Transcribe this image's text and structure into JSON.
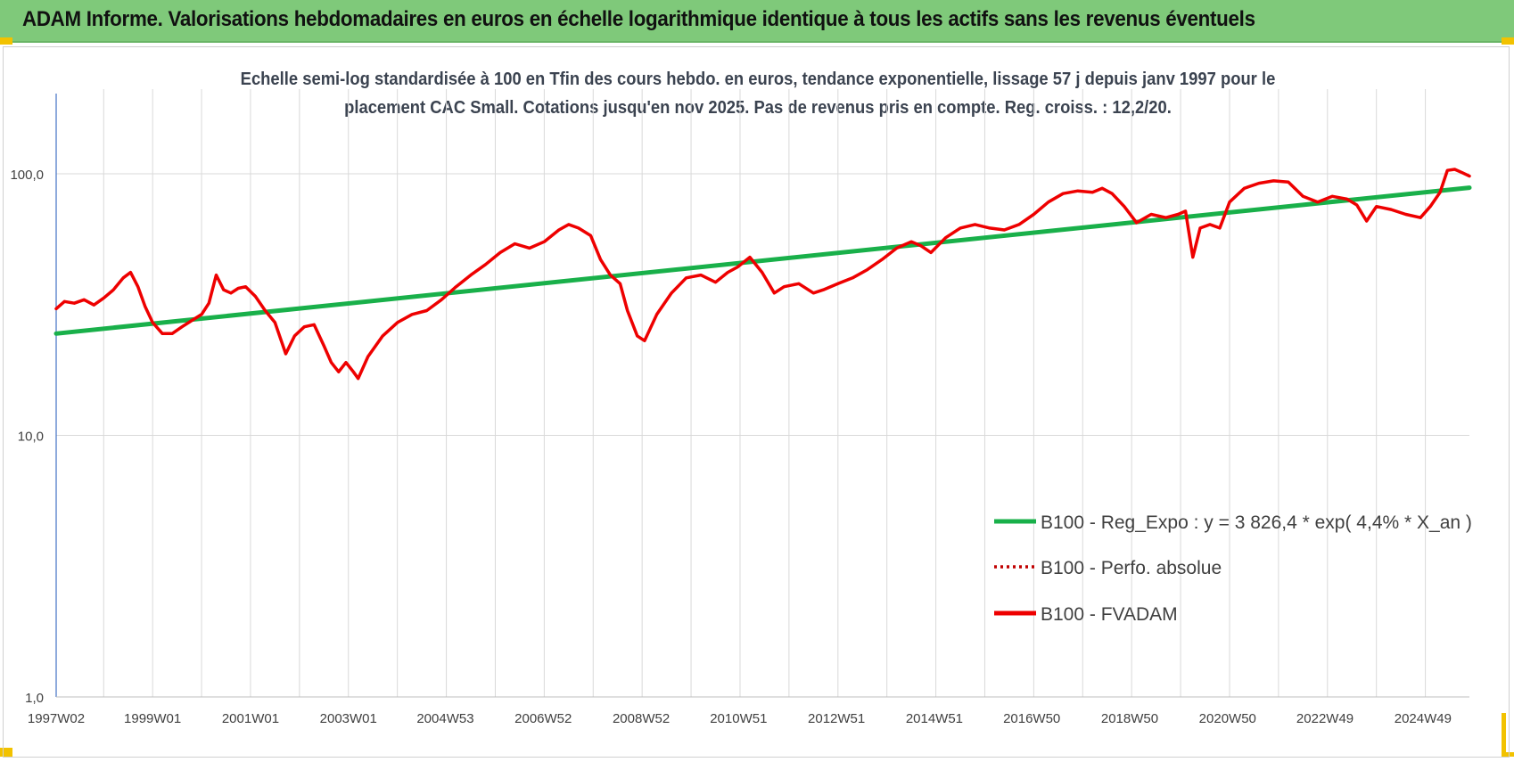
{
  "banner": {
    "title": "ADAM Informe. Valorisations hebdomadaires en euros en échelle logarithmique identique à tous les actifs sans les revenus éventuels"
  },
  "chart": {
    "subtitle_line1": "Echelle semi-log standardisée à 100 en Tfin des cours hebdo. en euros, tendance exponentielle, lissage 57 j depuis janv 1997 pour le",
    "subtitle_line2": "placement CAC Small. Cotations jusqu'en nov 2025.  Pas de revenus pris en compte. Reg. croiss. : 12,2/20."
  },
  "colors": {
    "banner": "#7fc97a",
    "trend": "#19b04a",
    "fvadam": "#ee0000",
    "perfo": "#c00000",
    "grid": "#d9d9d9",
    "axis": "#4472c4",
    "accent": "#f2c200"
  },
  "chart_data": {
    "type": "line",
    "y_scale": "log",
    "ylim": [
      1,
      100
    ],
    "y_ticks": [
      {
        "value": 100,
        "label": "100,0"
      },
      {
        "value": 10,
        "label": "10,0"
      },
      {
        "value": 1,
        "label": "1,0"
      }
    ],
    "x_range": [
      1997.03,
      2025.9
    ],
    "x_ticks": [
      {
        "value": 1997.03,
        "label": "1997W02"
      },
      {
        "value": 1999.0,
        "label": "1999W01"
      },
      {
        "value": 2001.0,
        "label": "2001W01"
      },
      {
        "value": 2003.0,
        "label": "2003W01"
      },
      {
        "value": 2004.98,
        "label": "2004W53"
      },
      {
        "value": 2006.98,
        "label": "2006W52"
      },
      {
        "value": 2008.98,
        "label": "2008W52"
      },
      {
        "value": 2010.97,
        "label": "2010W51"
      },
      {
        "value": 2012.97,
        "label": "2012W51"
      },
      {
        "value": 2014.97,
        "label": "2014W51"
      },
      {
        "value": 2016.96,
        "label": "2016W50"
      },
      {
        "value": 2018.96,
        "label": "2018W50"
      },
      {
        "value": 2020.96,
        "label": "2020W50"
      },
      {
        "value": 2022.95,
        "label": "2022W49"
      },
      {
        "value": 2024.95,
        "label": "2024W49"
      }
    ],
    "legend_position": "bottom-right",
    "series": [
      {
        "name": "B100 - Reg_Expo : y = 3 826,4 * exp( 4,4% *  X_an )",
        "style": "solid-thick",
        "color": "#19b04a",
        "x": [
          1997.03,
          2025.9
        ],
        "y": [
          24.5,
          88.5
        ]
      },
      {
        "name": "B100 - Perfo. absolue",
        "style": "dotted",
        "color": "#c00000",
        "x": [],
        "y": []
      },
      {
        "name": "B100 - FVADAM",
        "style": "solid",
        "color": "#ee0000",
        "x": [
          1997.03,
          1997.2,
          1997.4,
          1997.6,
          1997.8,
          1998.0,
          1998.2,
          1998.4,
          1998.55,
          1998.7,
          1998.85,
          1999.0,
          1999.2,
          1999.4,
          1999.6,
          1999.8,
          2000.0,
          2000.15,
          2000.3,
          2000.45,
          2000.6,
          2000.75,
          2000.9,
          2001.1,
          2001.3,
          2001.5,
          2001.72,
          2001.9,
          2002.1,
          2002.3,
          2002.5,
          2002.65,
          2002.8,
          2002.95,
          2003.1,
          2003.2,
          2003.4,
          2003.7,
          2004.0,
          2004.3,
          2004.6,
          2004.9,
          2005.2,
          2005.5,
          2005.8,
          2006.1,
          2006.4,
          2006.7,
          2007.0,
          2007.3,
          2007.5,
          2007.7,
          2007.95,
          2008.15,
          2008.35,
          2008.55,
          2008.7,
          2008.9,
          2009.05,
          2009.3,
          2009.6,
          2009.9,
          2010.2,
          2010.5,
          2010.75,
          2010.95,
          2011.2,
          2011.45,
          2011.7,
          2011.9,
          2012.2,
          2012.5,
          2012.7,
          2013.0,
          2013.3,
          2013.6,
          2013.9,
          2014.2,
          2014.5,
          2014.7,
          2014.9,
          2015.2,
          2015.5,
          2015.8,
          2016.1,
          2016.4,
          2016.7,
          2017.0,
          2017.3,
          2017.6,
          2017.9,
          2018.2,
          2018.4,
          2018.6,
          2018.85,
          2019.1,
          2019.4,
          2019.7,
          2019.95,
          2020.1,
          2020.25,
          2020.4,
          2020.6,
          2020.8,
          2021.0,
          2021.3,
          2021.6,
          2021.9,
          2022.2,
          2022.5,
          2022.8,
          2023.1,
          2023.4,
          2023.6,
          2023.8,
          2024.0,
          2024.3,
          2024.6,
          2024.9,
          2025.1,
          2025.3,
          2025.45,
          2025.6,
          2025.75,
          2025.9
        ],
        "y": [
          30.5,
          32.5,
          32.0,
          33.0,
          31.5,
          33.5,
          36.0,
          40.0,
          42.0,
          37.0,
          31.0,
          27.0,
          24.5,
          24.5,
          26.0,
          27.5,
          29.0,
          32.0,
          41.0,
          36.0,
          35.0,
          36.5,
          37.0,
          34.0,
          30.0,
          27.0,
          20.5,
          24.0,
          26.0,
          26.5,
          22.0,
          19.0,
          17.5,
          19.0,
          17.5,
          16.5,
          20.0,
          24.0,
          27.0,
          29.0,
          30.0,
          33.0,
          37.0,
          41.0,
          45.0,
          50.0,
          54.0,
          52.0,
          55.0,
          61.0,
          64.0,
          62.0,
          58.0,
          47.0,
          41.0,
          38.0,
          30.0,
          24.0,
          23.0,
          29.0,
          35.0,
          40.0,
          41.0,
          38.5,
          42.0,
          44.0,
          48.0,
          42.0,
          35.0,
          37.0,
          38.0,
          35.0,
          36.0,
          38.0,
          40.0,
          43.0,
          47.0,
          52.0,
          55.0,
          53.0,
          50.0,
          57.0,
          62.0,
          64.0,
          62.0,
          61.0,
          64.0,
          70.0,
          78.0,
          84.0,
          86.0,
          85.0,
          88.0,
          84.0,
          75.0,
          65.0,
          70.0,
          68.0,
          70.0,
          72.0,
          48.0,
          62.0,
          64.0,
          62.0,
          78.0,
          88.0,
          92.0,
          94.0,
          93.0,
          82.0,
          78.0,
          82.0,
          80.0,
          76.0,
          66.0,
          75.0,
          73.0,
          70.0,
          68.0,
          75.0,
          85.0,
          103.0,
          104.0,
          101.0,
          98.0
        ]
      }
    ]
  }
}
